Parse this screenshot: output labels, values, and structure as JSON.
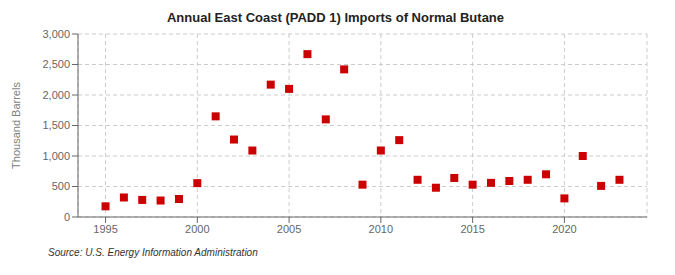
{
  "chart_data": {
    "type": "scatter",
    "title": "Annual East Coast (PADD 1) Imports of Normal Butane",
    "ylabel": "Thousand Barrels",
    "annotation": "Source: U.S. Energy Information Administration",
    "x": [
      1995,
      1996,
      1997,
      1998,
      1999,
      2000,
      2001,
      2002,
      2003,
      2004,
      2005,
      2006,
      2007,
      2008,
      2009,
      2010,
      2011,
      2012,
      2013,
      2014,
      2015,
      2016,
      2017,
      2018,
      2019,
      2020,
      2021,
      2022,
      2023
    ],
    "values": [
      175,
      320,
      280,
      270,
      295,
      555,
      1650,
      1270,
      1090,
      2170,
      2100,
      2670,
      1600,
      2420,
      530,
      1090,
      1260,
      610,
      480,
      640,
      530,
      560,
      590,
      610,
      700,
      305,
      1000,
      510,
      610
    ],
    "color": "#cc0000",
    "marker": "square",
    "xlim": [
      1993.5,
      2024.5
    ],
    "ylim": [
      0,
      3000
    ],
    "xticks": [
      1995,
      2000,
      2005,
      2010,
      2015,
      2020
    ],
    "yticks": [
      0,
      500,
      {
        "value": 1000,
        "label": "1,000"
      },
      {
        "value": 1500,
        "label": "1,500"
      },
      {
        "value": 2000,
        "label": "2,000"
      },
      {
        "value": 2500,
        "label": "2,500"
      },
      {
        "value": 3000,
        "label": "3,000"
      }
    ],
    "grid": true
  }
}
